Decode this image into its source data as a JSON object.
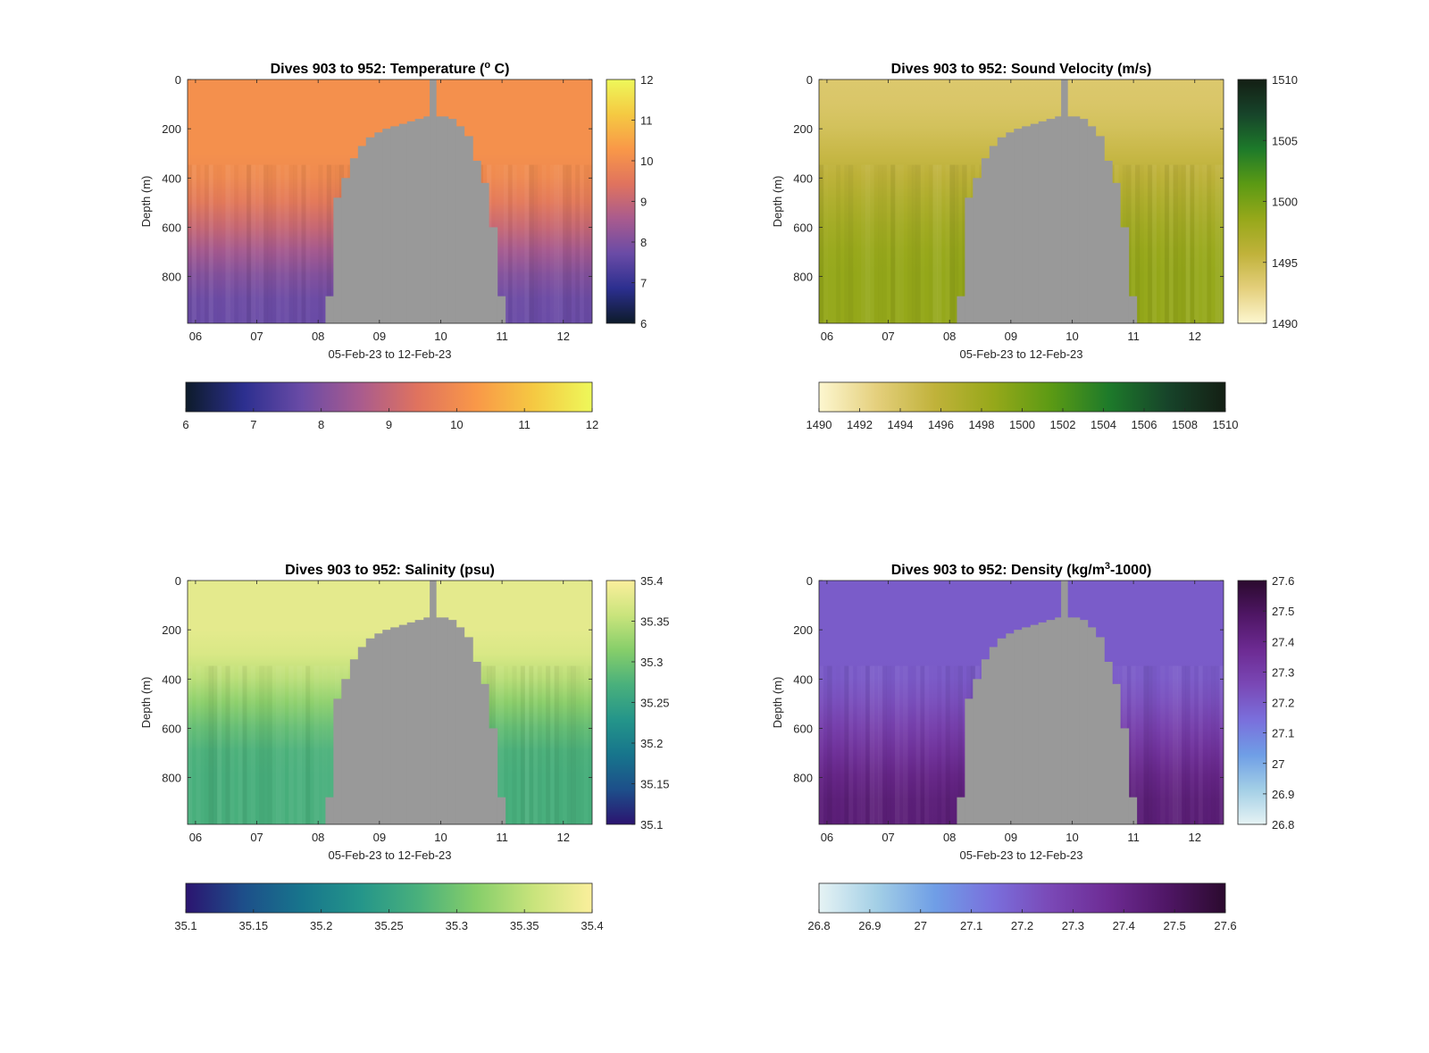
{
  "figure": {
    "background": "#ffffff",
    "mask_color": "#999999"
  },
  "chart_data": [
    {
      "type": "heatmap",
      "title": "Dives 903 to 952: Temperature (° C)",
      "title_parts": [
        "Dives 903 to 952: Temperature (",
        "o",
        " C)"
      ],
      "xlabel": "05-Feb-23 to 12-Feb-23",
      "ylabel": "Depth (m)",
      "xlim": [
        5.87,
        12.47
      ],
      "ylim": [
        0,
        990
      ],
      "x_ticks": [
        6,
        7,
        8,
        9,
        10,
        11,
        12
      ],
      "x_tick_labels": [
        "06",
        "07",
        "08",
        "09",
        "10",
        "11",
        "12"
      ],
      "y_ticks": [
        0,
        200,
        400,
        600,
        800
      ],
      "y_tick_labels": [
        "0",
        "200",
        "400",
        "600",
        "800"
      ],
      "colormap": [
        "#0d1b2a",
        "#2c2f8f",
        "#6a4ba6",
        "#a95b8e",
        "#e0735e",
        "#f99848",
        "#f5c942",
        "#eef85a"
      ],
      "clim": [
        6,
        12
      ],
      "field": {
        "surface": 10.1,
        "deep": 7.7,
        "gradient": [
          300,
          950
        ]
      },
      "vertical_colorbar": {
        "ticks": [
          6,
          7,
          8,
          9,
          10,
          11,
          12
        ],
        "tick_labels": [
          "6",
          "7",
          "8",
          "9",
          "10",
          "11",
          "12"
        ]
      },
      "horizontal_colorbar": {
        "ticks": [
          6,
          7,
          8,
          9,
          10,
          11,
          12
        ],
        "tick_labels": [
          "6",
          "7",
          "8",
          "9",
          "10",
          "11",
          "12"
        ]
      }
    },
    {
      "type": "heatmap",
      "title": "Dives 903 to 952: Sound Velocity (m/s)",
      "title_parts": [
        "Dives 903 to 952: Sound Velocity (m/s)"
      ],
      "xlabel": "05-Feb-23 to 12-Feb-23",
      "ylabel": "Depth (m)",
      "xlim": [
        5.87,
        12.47
      ],
      "ylim": [
        0,
        990
      ],
      "x_ticks": [
        6,
        7,
        8,
        9,
        10,
        11,
        12
      ],
      "x_tick_labels": [
        "06",
        "07",
        "08",
        "09",
        "10",
        "11",
        "12"
      ],
      "y_ticks": [
        0,
        200,
        400,
        600,
        800
      ],
      "y_tick_labels": [
        "0",
        "200",
        "400",
        "600",
        "800"
      ],
      "colormap": [
        "#fdf7d0",
        "#e4cf7c",
        "#c0b23a",
        "#96a81a",
        "#5b9a14",
        "#1d7a2a",
        "#17442a",
        "#141f14"
      ],
      "clim": [
        1490,
        1510
      ],
      "field": {
        "surface": 1493.5,
        "deep": 1498.6,
        "gradient": [
          0,
          800
        ]
      },
      "vertical_colorbar": {
        "ticks": [
          1490,
          1495,
          1500,
          1505,
          1510
        ],
        "tick_labels": [
          "1490",
          "1495",
          "1500",
          "1505",
          "1510"
        ]
      },
      "horizontal_colorbar": {
        "ticks": [
          1490,
          1492,
          1494,
          1496,
          1498,
          1500,
          1502,
          1504,
          1506,
          1508,
          1510
        ],
        "tick_labels": [
          "1490",
          "1492",
          "1494",
          "1496",
          "1498",
          "1500",
          "1502",
          "1504",
          "1506",
          "1508",
          "1510"
        ]
      }
    },
    {
      "type": "heatmap",
      "title": "Dives 903 to 952: Salinity (psu)",
      "title_parts": [
        "Dives 903 to 952: Salinity (psu)"
      ],
      "xlabel": "05-Feb-23 to 12-Feb-23",
      "ylabel": "Depth (m)",
      "xlim": [
        5.87,
        12.47
      ],
      "ylim": [
        0,
        990
      ],
      "x_ticks": [
        6,
        7,
        8,
        9,
        10,
        11,
        12
      ],
      "x_tick_labels": [
        "06",
        "07",
        "08",
        "09",
        "10",
        "11",
        "12"
      ],
      "y_ticks": [
        0,
        200,
        400,
        600,
        800
      ],
      "y_tick_labels": [
        "0",
        "200",
        "400",
        "600",
        "800"
      ],
      "colormap": [
        "#2b1470",
        "#1d4f8a",
        "#17758c",
        "#24958a",
        "#49b07c",
        "#86ce6a",
        "#c9e47c",
        "#fbef9c"
      ],
      "clim": [
        35.1,
        35.4
      ],
      "field": {
        "surface": 35.38,
        "deep": 35.27,
        "gradient": [
          200,
          750
        ]
      },
      "vertical_colorbar": {
        "ticks": [
          35.1,
          35.15,
          35.2,
          35.25,
          35.3,
          35.35,
          35.4
        ],
        "tick_labels": [
          "35.1",
          "35.15",
          "35.2",
          "35.25",
          "35.3",
          "35.35",
          "35.4"
        ]
      },
      "horizontal_colorbar": {
        "ticks": [
          35.1,
          35.15,
          35.2,
          35.25,
          35.3,
          35.35,
          35.4
        ],
        "tick_labels": [
          "35.1",
          "35.15",
          "35.2",
          "35.25",
          "35.3",
          "35.35",
          "35.4"
        ]
      }
    },
    {
      "type": "heatmap",
      "title": "Dives 903 to 952: Density (kg/m³-1000)",
      "title_parts": [
        "Dives 903 to 952: Density (kg/m",
        "3",
        "-1000)"
      ],
      "xlabel": "05-Feb-23 to 12-Feb-23",
      "ylabel": "Depth (m)",
      "xlim": [
        5.87,
        12.47
      ],
      "ylim": [
        0,
        990
      ],
      "x_ticks": [
        6,
        7,
        8,
        9,
        10,
        11,
        12
      ],
      "x_tick_labels": [
        "06",
        "07",
        "08",
        "09",
        "10",
        "11",
        "12"
      ],
      "y_ticks": [
        0,
        200,
        400,
        600,
        800
      ],
      "y_tick_labels": [
        "0",
        "200",
        "400",
        "600",
        "800"
      ],
      "colormap": [
        "#e6f3f4",
        "#a3cfe6",
        "#6f9ee6",
        "#7a6fdc",
        "#7a48b6",
        "#6d2b93",
        "#4f1665",
        "#2b0a2e"
      ],
      "clim": [
        26.8,
        27.6
      ],
      "field": {
        "surface": 27.2,
        "deep": 27.44,
        "gradient": [
          350,
          950
        ]
      },
      "vertical_colorbar": {
        "ticks": [
          26.8,
          26.9,
          27.0,
          27.1,
          27.2,
          27.3,
          27.4,
          27.5,
          27.6
        ],
        "tick_labels": [
          "26.8",
          "26.9",
          "27",
          "27.1",
          "27.2",
          "27.3",
          "27.4",
          "27.5",
          "27.6"
        ]
      },
      "horizontal_colorbar": {
        "ticks": [
          26.8,
          26.9,
          27.0,
          27.1,
          27.2,
          27.3,
          27.4,
          27.5,
          27.6
        ],
        "tick_labels": [
          "26.8",
          "26.9",
          "27",
          "27.1",
          "27.2",
          "27.3",
          "27.4",
          "27.5",
          "27.6"
        ]
      }
    }
  ],
  "mask_profile": {
    "x": [
      8.12,
      8.25,
      8.38,
      8.52,
      8.65,
      8.78,
      8.92,
      9.05,
      9.18,
      9.32,
      9.45,
      9.58,
      9.72,
      9.85,
      9.98,
      10.12,
      10.25,
      10.38,
      10.52,
      10.65,
      10.78,
      10.92,
      11.05
    ],
    "top": [
      880,
      480,
      400,
      320,
      270,
      235,
      215,
      200,
      190,
      180,
      170,
      160,
      150,
      150,
      150,
      160,
      190,
      230,
      330,
      420,
      600,
      880,
      990
    ],
    "spike": {
      "x0": 9.82,
      "x1": 9.93,
      "top": 0
    }
  }
}
